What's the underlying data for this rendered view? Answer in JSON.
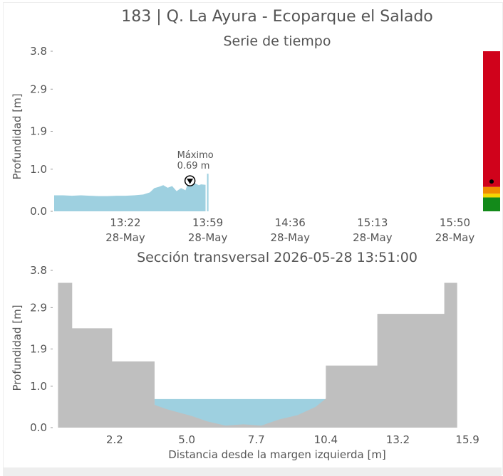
{
  "page": {
    "title": "183 | Q. La Ayura - Ecoparque el Salado"
  },
  "colors": {
    "water": "#9ed0e0",
    "terrain": "#bfbfbf",
    "axis_text": "#555555",
    "title_text": "#555555",
    "risk_red": "#d0021b",
    "risk_orange": "#f08c00",
    "risk_yellow": "#f5d600",
    "risk_green": "#138a1a"
  },
  "chart_data": [
    {
      "id": "timeseries",
      "type": "area",
      "title": "Serie de tiempo",
      "ylabel": "Profundidad [m]",
      "ylim": [
        0.0,
        3.8
      ],
      "yticks": [
        0.0,
        1.0,
        1.9,
        2.9,
        3.8
      ],
      "ytick_labels": [
        "0.0",
        "1.0",
        "1.9",
        "2.9",
        "3.8"
      ],
      "xlim": [
        "12:50",
        "16:02"
      ],
      "xticks": [
        {
          "time": "13:22",
          "label": "13:22",
          "sublabel": "28-May"
        },
        {
          "time": "13:59",
          "label": "13:59",
          "sublabel": "28-May"
        },
        {
          "time": "14:36",
          "label": "14:36",
          "sublabel": "28-May"
        },
        {
          "time": "15:13",
          "label": "15:13",
          "sublabel": "28-May"
        },
        {
          "time": "15:50",
          "label": "15:50",
          "sublabel": "28-May"
        }
      ],
      "series": [
        {
          "x": [
            "12:50",
            "12:54",
            "12:58",
            "13:02",
            "13:06",
            "13:10",
            "13:14",
            "13:18",
            "13:22",
            "13:26",
            "13:30",
            "13:33",
            "13:35",
            "13:37",
            "13:39",
            "13:41",
            "13:43",
            "13:45",
            "13:47",
            "13:49",
            "13:50",
            "13:51",
            "13:52",
            "13:53",
            "13:55",
            "13:56",
            "13:58"
          ],
          "y": [
            0.38,
            0.38,
            0.37,
            0.38,
            0.37,
            0.36,
            0.36,
            0.37,
            0.37,
            0.38,
            0.4,
            0.45,
            0.55,
            0.58,
            0.62,
            0.56,
            0.6,
            0.48,
            0.55,
            0.5,
            0.66,
            0.69,
            0.66,
            0.67,
            0.62,
            0.64,
            0.63
          ]
        }
      ],
      "marker_x": "13:59",
      "max_annotation": {
        "label": "Máximo",
        "value_label": "0.69 m",
        "x": "13:51",
        "y": 0.69
      },
      "risk_bar": {
        "levels": [
          {
            "name": "verde",
            "from": 0.0,
            "to": 0.33,
            "color": "#138a1a"
          },
          {
            "name": "amarillo",
            "from": 0.33,
            "to": 0.42,
            "color": "#f5d600"
          },
          {
            "name": "naranja",
            "from": 0.42,
            "to": 0.58,
            "color": "#f08c00"
          },
          {
            "name": "rojo",
            "from": 0.58,
            "to": 3.8,
            "color": "#d0021b"
          }
        ],
        "current": 0.69
      }
    },
    {
      "id": "cross_section",
      "type": "area",
      "title": "Sección transversal 2026-05-28 13:51:00",
      "xlabel": "Distancia desde la margen izquierda [m]",
      "ylabel": "Profundidad [m]",
      "xlim": [
        -0.15,
        16.45
      ],
      "ylim": [
        0.0,
        3.8
      ],
      "yticks": [
        0.0,
        1.0,
        1.9,
        2.9,
        3.8
      ],
      "ytick_labels": [
        "0.0",
        "1.0",
        "1.9",
        "2.9",
        "3.8"
      ],
      "xticks": [
        2.2,
        5.0,
        7.7,
        10.4,
        13.2,
        15.9
      ],
      "xtick_labels": [
        "2.2",
        "5.0",
        "7.7",
        "10.4",
        "13.2",
        "15.9"
      ],
      "terrain": {
        "x": [
          0.0,
          0.0,
          0.55,
          0.55,
          2.1,
          2.1,
          3.75,
          3.75,
          4.2,
          4.6,
          5.2,
          5.8,
          6.5,
          7.2,
          7.9,
          8.6,
          9.3,
          10.0,
          10.4,
          10.4,
          12.4,
          12.4,
          15.0,
          15.0,
          15.5,
          15.5
        ],
        "y": [
          3.5,
          3.5,
          3.5,
          2.4,
          2.4,
          1.6,
          1.6,
          0.55,
          0.45,
          0.38,
          0.28,
          0.15,
          0.05,
          0.08,
          0.05,
          0.2,
          0.3,
          0.5,
          0.7,
          1.5,
          1.5,
          2.75,
          2.75,
          3.5,
          3.5,
          3.5
        ]
      },
      "water_level": 0.69
    }
  ]
}
